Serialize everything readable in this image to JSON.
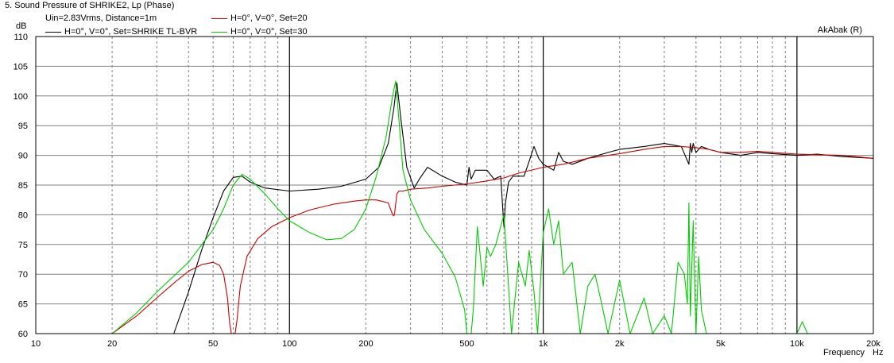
{
  "window": {
    "title": "5. Sound Pressure of SHRIKE2, Lp (Phase)",
    "subtitle": "Uin=2.83Vrms, Distance=1m",
    "source": "AkAbak (R)"
  },
  "colors": {
    "black_series": "#000000",
    "red_series": "#cc0000",
    "green_series": "#00cc00",
    "grid_major": "#000000",
    "grid_minor": "#808080",
    "background": "#ffffff"
  },
  "chart_data": {
    "type": "line",
    "title": "5. Sound Pressure of SHRIKE2, Lp (Phase)",
    "xlabel": "Frequency",
    "x_unit": "Hz",
    "ylabel": "dB",
    "x_scale": "log",
    "xlim": [
      10,
      20000
    ],
    "ylim": [
      60,
      110
    ],
    "grid": true,
    "legend": "top-left",
    "x_tick_labels": [
      "10",
      "20",
      "50",
      "100",
      "200",
      "500",
      "1k",
      "2k",
      "5k",
      "10k",
      "20k"
    ],
    "x_tick_values": [
      10,
      20,
      50,
      100,
      200,
      500,
      1000,
      2000,
      5000,
      10000,
      20000
    ],
    "y_ticks": [
      60,
      65,
      70,
      75,
      80,
      85,
      90,
      95,
      100,
      105,
      110
    ],
    "series": [
      {
        "name": "H=0°, V=0°, Set=SHRIKE TL-BVR",
        "color": "#000000",
        "x": [
          10,
          20,
          35,
          40,
          45,
          50,
          55,
          60,
          65,
          70,
          80,
          100,
          130,
          160,
          200,
          225,
          245,
          258,
          265,
          275,
          290,
          310,
          325,
          350,
          400,
          450,
          500,
          510,
          520,
          540,
          600,
          640,
          680,
          700,
          710,
          730,
          760,
          800,
          840,
          880,
          920,
          960,
          1000,
          1050,
          1100,
          1150,
          1200,
          1300,
          1500,
          1800,
          2000,
          2500,
          3000,
          3500,
          3750,
          3800,
          3850,
          3900,
          4000,
          4200,
          4500,
          5000,
          6000,
          7000,
          8000,
          10000,
          12000,
          15000,
          20000
        ],
        "y": [
          60,
          60,
          60,
          67,
          74,
          79.5,
          84,
          86.3,
          86.5,
          85.5,
          84.5,
          84,
          84.3,
          84.8,
          86,
          88,
          92,
          98,
          102.2,
          96,
          88,
          84.5,
          86,
          88,
          86.5,
          85.5,
          85,
          88,
          86,
          87.5,
          87.5,
          86,
          86.5,
          78,
          82,
          85.5,
          86.5,
          86.5,
          86.5,
          89,
          91.5,
          89.5,
          88.5,
          88,
          87.5,
          90.5,
          89,
          88.5,
          89.5,
          90.5,
          91,
          91.5,
          92,
          91.5,
          88.5,
          92,
          90.5,
          92,
          90.5,
          91.5,
          91,
          90.5,
          90,
          90.5,
          90.3,
          90,
          90.2,
          89.8,
          89.5
        ]
      },
      {
        "name": "H=0°, V=0°, Set=20",
        "color": "#cc0000",
        "x": [
          10,
          20,
          25,
          30,
          35,
          40,
          45,
          50,
          53,
          55,
          57,
          58,
          59,
          60,
          61,
          62,
          64,
          68,
          75,
          85,
          100,
          120,
          150,
          180,
          200,
          220,
          245,
          255,
          258,
          260,
          265,
          270,
          280,
          300,
          350,
          400,
          500,
          600,
          700,
          800,
          1000,
          1200,
          1500,
          2000,
          2500,
          3000,
          3500,
          4000,
          4500,
          5000,
          6000,
          7000,
          8000,
          10000,
          15000,
          20000
        ],
        "y": [
          60,
          60,
          63,
          66,
          68.5,
          70.5,
          71.6,
          72,
          71.5,
          70,
          66,
          62,
          60,
          60,
          60,
          62,
          68,
          73,
          76,
          78,
          79.5,
          80.8,
          81.8,
          82.3,
          82.5,
          82.5,
          82,
          80,
          79.8,
          80.5,
          83.5,
          84,
          84,
          84.3,
          84.5,
          84.8,
          85.2,
          85.7,
          86.2,
          87,
          88,
          88.5,
          89.5,
          90.3,
          91,
          91.5,
          91.5,
          91.3,
          91,
          90.5,
          90.5,
          90.7,
          90.5,
          90.2,
          90,
          89.5
        ]
      },
      {
        "name": "H=0°, V=0°, Set=30",
        "color": "#00cc00",
        "x": [
          10,
          20,
          25,
          30,
          40,
          50,
          55,
          60,
          65,
          70,
          80,
          90,
          100,
          120,
          140,
          160,
          180,
          200,
          220,
          240,
          255,
          262,
          270,
          280,
          300,
          340,
          400,
          450,
          490,
          500,
          520,
          530,
          550,
          580,
          600,
          620,
          650,
          700,
          720,
          750,
          800,
          850,
          880,
          920,
          950,
          1000,
          1050,
          1100,
          1150,
          1200,
          1300,
          1400,
          1500,
          1600,
          1700,
          1800,
          2000,
          2200,
          2500,
          2700,
          3000,
          3200,
          3400,
          3600,
          3700,
          3750,
          3800,
          3900,
          4000,
          4100,
          4200,
          4400,
          5000,
          10000,
          10500,
          11000,
          20000
        ],
        "y": [
          60,
          60,
          63.5,
          67,
          72,
          77.5,
          81,
          85,
          86.8,
          86,
          83.5,
          81,
          79,
          77,
          75.8,
          76,
          77.5,
          81,
          86.5,
          93,
          100,
          102.5,
          96,
          87.5,
          82.5,
          77.5,
          73.5,
          69.5,
          64,
          60,
          60,
          64,
          78,
          68,
          74.5,
          73,
          75,
          80,
          72,
          60,
          72,
          68,
          74,
          67,
          60,
          77,
          81,
          75,
          79,
          70,
          72,
          60,
          68,
          70,
          65,
          60,
          69,
          60,
          66,
          60,
          63,
          60,
          72,
          70,
          65,
          82,
          63,
          79,
          60,
          73,
          64,
          60,
          60,
          60,
          62,
          60,
          60
        ]
      }
    ]
  }
}
